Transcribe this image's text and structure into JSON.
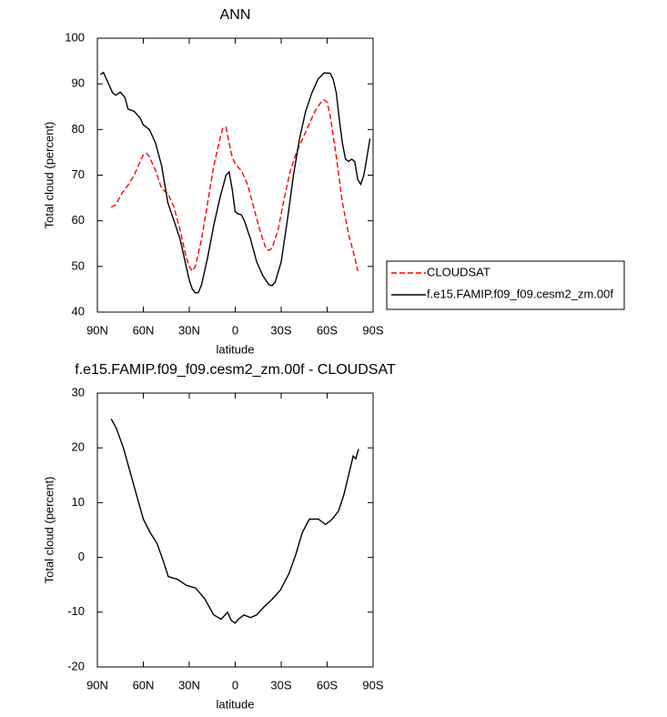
{
  "chart_data": [
    {
      "type": "line",
      "title": "ANN",
      "xlabel": "latitude",
      "ylabel": "Total cloud (percent)",
      "xlim": [
        90,
        -90
      ],
      "ylim": [
        40,
        100
      ],
      "xticks": [
        {
          "value": 90,
          "label": "90N"
        },
        {
          "value": 60,
          "label": "60N"
        },
        {
          "value": 30,
          "label": "30N"
        },
        0,
        {
          "value": -30,
          "label": "30S"
        },
        {
          "value": -60,
          "label": "60S"
        },
        {
          "value": -90,
          "label": "90S"
        }
      ],
      "yticks": [
        40,
        50,
        60,
        70,
        80,
        90,
        100
      ],
      "legend": "right",
      "series": [
        {
          "name": "CLOUDSAT",
          "color": "#ff0000",
          "dash": true,
          "x": [
            81,
            78,
            74,
            70,
            66,
            62,
            60,
            58,
            56,
            52,
            48,
            44,
            40,
            36,
            32,
            30,
            28,
            26,
            22,
            18,
            14,
            10,
            8,
            6,
            4,
            2,
            0,
            -4,
            -8,
            -12,
            -16,
            -20,
            -22,
            -24,
            -28,
            -32,
            -36,
            -40,
            -44,
            -48,
            -52,
            -56,
            -58,
            -60,
            -62,
            -66,
            -70,
            -74,
            -78,
            -80
          ],
          "values": [
            63,
            63.5,
            66,
            67.8,
            70,
            73,
            74.5,
            74.8,
            74,
            71,
            67,
            66,
            63,
            58,
            52,
            50,
            49,
            50,
            56,
            64,
            72,
            78,
            80.3,
            80.5,
            77,
            74,
            72.5,
            71,
            68,
            63,
            58,
            54,
            53.5,
            54,
            58,
            65,
            71,
            75,
            78,
            81,
            84,
            86,
            86.5,
            86,
            83,
            74,
            64,
            57,
            52,
            49
          ]
        },
        {
          "name": "f.e15.FAMIP.f09_f09.cesm2_zm.00f",
          "color": "#000000",
          "dash": false,
          "x": [
            88,
            86,
            84,
            80,
            78,
            75,
            72,
            70,
            66,
            62,
            60,
            56,
            52,
            48,
            44,
            40,
            36,
            32,
            30,
            28,
            26,
            24,
            22,
            18,
            14,
            10,
            6,
            4,
            2,
            0,
            -2,
            -4,
            -6,
            -10,
            -14,
            -18,
            -22,
            -24,
            -26,
            -30,
            -34,
            -38,
            -42,
            -46,
            -50,
            -54,
            -58,
            -62,
            -64,
            -66,
            -68,
            -70,
            -72,
            -74,
            -76,
            -78,
            -80,
            -82,
            -84,
            -86,
            -88
          ],
          "values": [
            92,
            92.5,
            91,
            88,
            87.5,
            88.2,
            87,
            84.5,
            84,
            82.5,
            81,
            80,
            77,
            72,
            64,
            60,
            56,
            50,
            47,
            45,
            44.2,
            44.3,
            46,
            52,
            59,
            65,
            70,
            70.7,
            67,
            62,
            61.5,
            61.3,
            60,
            56,
            51,
            48,
            46,
            45.8,
            46.5,
            51,
            60,
            70,
            78,
            84,
            88,
            91,
            92.4,
            92.3,
            91,
            88,
            82,
            77,
            73.5,
            73,
            73.5,
            73,
            69,
            68,
            70,
            74,
            78
          ]
        }
      ]
    },
    {
      "type": "line",
      "title": "f.e15.FAMIP.f09_f09.cesm2_zm.00f - CLOUDSAT",
      "xlabel": "latitude",
      "ylabel": "Total cloud (percent)",
      "xlim": [
        90,
        -90
      ],
      "ylim": [
        -20,
        30
      ],
      "xticks": [
        {
          "value": 90,
          "label": "90N"
        },
        {
          "value": 60,
          "label": "60N"
        },
        {
          "value": 30,
          "label": "30N"
        },
        0,
        {
          "value": -30,
          "label": "30S"
        },
        {
          "value": -60,
          "label": "60S"
        },
        {
          "value": -90,
          "label": "90S"
        }
      ],
      "yticks": [
        -20,
        -10,
        0,
        10,
        20,
        30
      ],
      "series": [
        {
          "color": "#000000",
          "dash": false,
          "x": [
            81,
            77.5,
            73,
            69,
            64.5,
            60,
            55.5,
            51,
            46.6,
            43.7,
            37.7,
            31.8,
            25.8,
            20,
            14,
            9.2,
            5,
            2.7,
            0,
            -2,
            -5.7,
            -10,
            -14,
            -18.9,
            -23.5,
            -29.4,
            -35,
            -39.5,
            -43.7,
            -48.4,
            -54.3,
            -59,
            -63.3,
            -67.5,
            -71,
            -74,
            -77,
            -78.7,
            -80.5
          ],
          "values": [
            25.3,
            23.5,
            20,
            16,
            11.5,
            7,
            4.5,
            2.5,
            -1,
            -3.5,
            -4,
            -5.1,
            -5.6,
            -7.5,
            -10.5,
            -11.3,
            -10,
            -11.5,
            -12,
            -11.3,
            -10.5,
            -11,
            -10.5,
            -9,
            -7.8,
            -6,
            -3,
            0.5,
            4.5,
            7,
            7,
            6,
            7,
            8.5,
            11.5,
            15,
            18.5,
            18,
            19.8
          ]
        }
      ]
    }
  ]
}
